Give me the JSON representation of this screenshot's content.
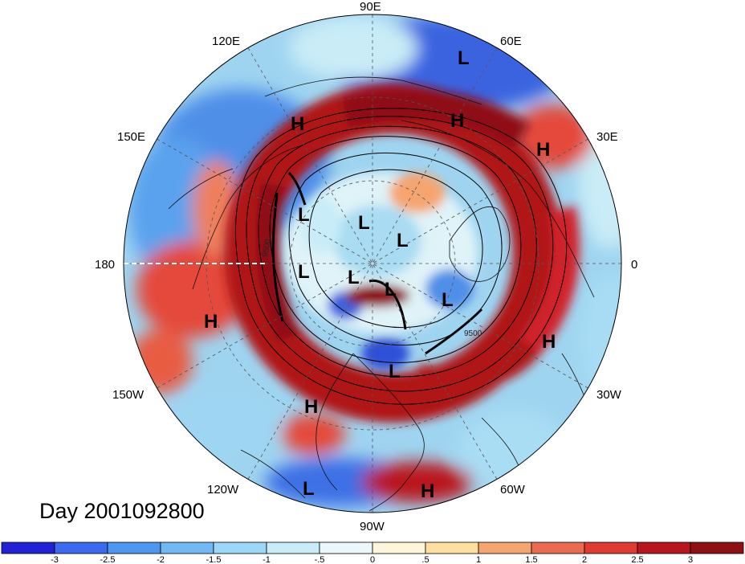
{
  "map": {
    "projection": "polar stereographic (Northern Hemisphere)",
    "contour_label_text": "9500",
    "longitude_labels": [
      "90E",
      "60E",
      "30E",
      "0",
      "30W",
      "60W",
      "90W",
      "120W",
      "150W",
      "180",
      "150E",
      "120E"
    ],
    "pressure_systems": [
      {
        "symbol": "H",
        "region": "East Asia"
      },
      {
        "symbol": "H",
        "region": "Barents / West Siberia"
      },
      {
        "symbol": "H",
        "region": "Eastern Europe"
      },
      {
        "symbol": "H",
        "region": "North Atlantic"
      },
      {
        "symbol": "H",
        "region": "Northeast Pacific"
      },
      {
        "symbol": "H",
        "region": "Baja California"
      },
      {
        "symbol": "H",
        "region": "Caribbean"
      },
      {
        "symbol": "L",
        "region": "Central Asia"
      },
      {
        "symbol": "L",
        "region": "East Siberian Sea"
      },
      {
        "symbol": "L",
        "region": "Arctic Ocean"
      },
      {
        "symbol": "L",
        "region": "Kara Sea"
      },
      {
        "symbol": "L",
        "region": "Chukchi Sea"
      },
      {
        "symbol": "L",
        "region": "Canadian Arctic"
      },
      {
        "symbol": "L",
        "region": "Baffin Bay"
      },
      {
        "symbol": "L",
        "region": "Greenland Sea"
      },
      {
        "symbol": "L",
        "region": "Eastern Canada"
      },
      {
        "symbol": "L",
        "region": "Eastern Pacific"
      }
    ]
  },
  "title": {
    "day_label": "Day 2001092800"
  },
  "colorbar": {
    "ticks": [
      "-3",
      "-2.5",
      "-2",
      "-1.5",
      "-1",
      "-.5",
      "0",
      ".5",
      "1",
      "1.5",
      "2",
      "2.5",
      "3"
    ],
    "colors": [
      "#2121d6",
      "#3b6af0",
      "#4d97f2",
      "#72b8f5",
      "#9bd7f7",
      "#c8edf8",
      "#eaf8fb",
      "#fdf6d8",
      "#fddfa0",
      "#f5a570",
      "#ec6a4f",
      "#e03a33",
      "#b8161c",
      "#8f0f12"
    ]
  }
}
